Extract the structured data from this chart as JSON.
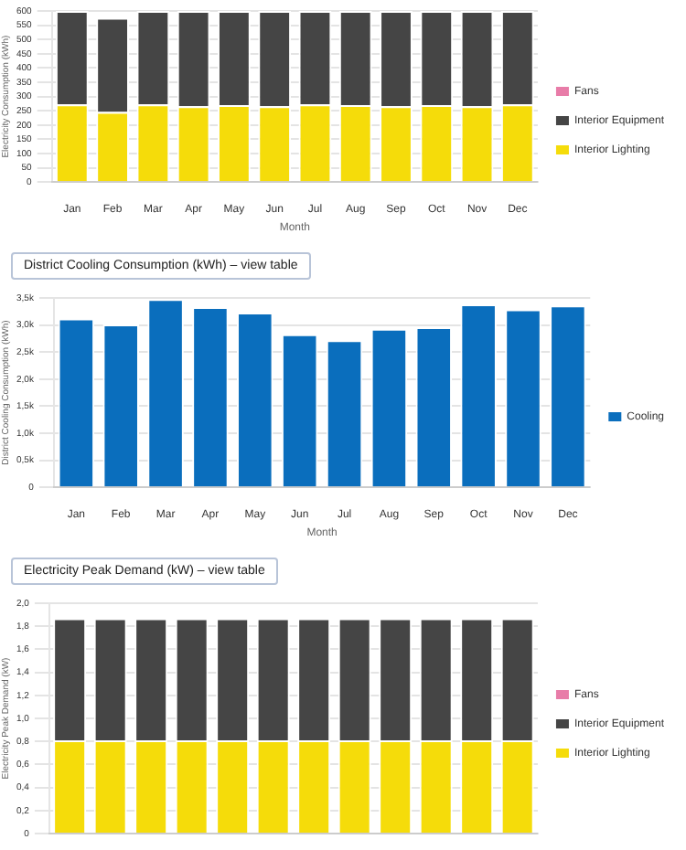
{
  "chart_data": [
    {
      "type": "bar",
      "stacked": true,
      "xlabel": "Month",
      "ylabel": "Electricity Consumption (kWh)",
      "categories": [
        "Jan",
        "Feb",
        "Mar",
        "Apr",
        "May",
        "Jun",
        "Jul",
        "Aug",
        "Sep",
        "Oct",
        "Nov",
        "Dec"
      ],
      "ylim": [
        0,
        600
      ],
      "yticks": [
        0,
        50,
        100,
        150,
        200,
        250,
        300,
        350,
        400,
        450,
        500,
        550,
        600
      ],
      "grid": "y",
      "legend": "right",
      "series": [
        {
          "name": "Interior Lighting",
          "color": "#f5dc0a",
          "values": [
            272,
            246,
            272,
            266,
            270,
            266,
            272,
            270,
            266,
            270,
            266,
            272
          ]
        },
        {
          "name": "Interior Equipment",
          "color": "#454545",
          "values": [
            328,
            330,
            328,
            334,
            330,
            334,
            328,
            330,
            334,
            330,
            334,
            328
          ]
        },
        {
          "name": "Fans",
          "color": "#e87ca8",
          "values": [
            0,
            0,
            0,
            0,
            0,
            0,
            0,
            0,
            0,
            0,
            0,
            0
          ]
        }
      ]
    },
    {
      "type": "bar",
      "title": "District Cooling Consumption (kWh) – view table",
      "xlabel": "Month",
      "ylabel": "District Cooling Consumption (kWh)",
      "categories": [
        "Jan",
        "Feb",
        "Mar",
        "Apr",
        "May",
        "Jun",
        "Jul",
        "Aug",
        "Sep",
        "Oct",
        "Nov",
        "Dec"
      ],
      "ylim": [
        0,
        3500
      ],
      "yticks": [
        0,
        {
          "value": 500,
          "label": "0,5k"
        },
        {
          "value": 1000,
          "label": "1,0k"
        },
        {
          "value": 1500,
          "label": "1,5k"
        },
        {
          "value": 2000,
          "label": "2,0k"
        },
        {
          "value": 2500,
          "label": "2,5k"
        },
        {
          "value": 3000,
          "label": "3,0k"
        },
        {
          "value": 3500,
          "label": "3,5k"
        }
      ],
      "grid": "y",
      "legend": "right",
      "series": [
        {
          "name": "Cooling",
          "color": "#0a6ebd",
          "values": [
            3120,
            3010,
            3480,
            3330,
            3230,
            2830,
            2720,
            2930,
            2960,
            3380,
            3290,
            3360
          ]
        }
      ]
    },
    {
      "type": "bar",
      "stacked": true,
      "title": "Electricity Peak Demand (kW) – view table",
      "ylabel": "Electricity Peak Demand (kW)",
      "categories": [
        null,
        null,
        null,
        null,
        null,
        null,
        null,
        null,
        null,
        null,
        null,
        null
      ],
      "tick_labels": "y",
      "ylim": [
        0,
        2
      ],
      "yticks": [
        0,
        {
          "value": 0.2,
          "label": "0,2"
        },
        {
          "value": 0.4,
          "label": "0,4"
        },
        {
          "value": 0.6,
          "label": "0,6"
        },
        {
          "value": 0.8,
          "label": "0,8"
        },
        {
          "value": 1,
          "label": "1,0"
        },
        {
          "value": 1.2,
          "label": "1,2"
        },
        {
          "value": 1.4,
          "label": "1,4"
        },
        {
          "value": 1.6,
          "label": "1,6"
        },
        {
          "value": 1.8,
          "label": "1,8"
        },
        {
          "value": 2,
          "label": "2,0"
        }
      ],
      "grid": "y",
      "legend": "right",
      "series": [
        {
          "name": "Interior Lighting",
          "color": "#f5dc0a",
          "values": [
            0.81,
            0.81,
            0.81,
            0.81,
            0.81,
            0.81,
            0.81,
            0.81,
            0.81,
            0.81,
            0.81,
            0.81
          ]
        },
        {
          "name": "Interior Equipment",
          "color": "#454545",
          "values": [
            1.06,
            1.06,
            1.06,
            1.06,
            1.06,
            1.06,
            1.06,
            1.06,
            1.06,
            1.06,
            1.06,
            1.06
          ]
        },
        {
          "name": "Fans",
          "color": "#e87ca8",
          "values": [
            0,
            0,
            0,
            0,
            0,
            0,
            0,
            0,
            0,
            0,
            0,
            0
          ]
        }
      ]
    }
  ]
}
